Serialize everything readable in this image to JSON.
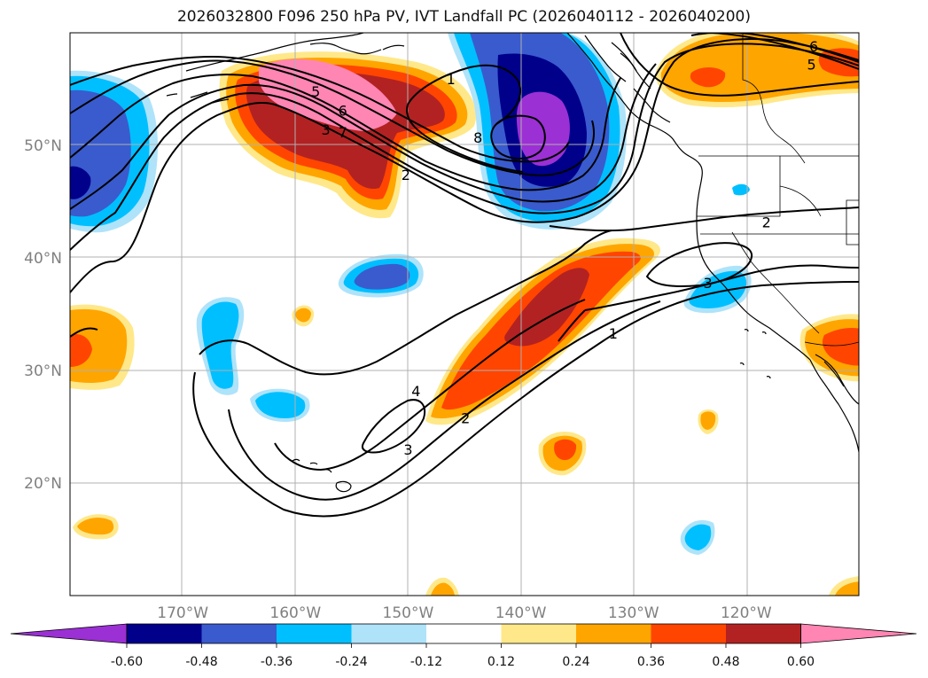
{
  "title": "2026032800 F096 250 hPa PV, IVT Landfall PC (2026040112 - 2026040200)",
  "map": {
    "lon_range": [
      -180,
      -110
    ],
    "lat_range": [
      10,
      60
    ],
    "lon_ticks": [
      {
        "value": -170,
        "label": "170°W"
      },
      {
        "value": -160,
        "label": "160°W"
      },
      {
        "value": -150,
        "label": "150°W"
      },
      {
        "value": -140,
        "label": "140°W"
      },
      {
        "value": -130,
        "label": "130°W"
      },
      {
        "value": -120,
        "label": "120°W"
      }
    ],
    "lat_ticks": [
      {
        "value": 50,
        "label": "50°N"
      },
      {
        "value": 40,
        "label": "40°N"
      },
      {
        "value": 30,
        "label": "30°N"
      },
      {
        "value": 20,
        "label": "20°N"
      }
    ],
    "grid": true,
    "tick_color": "#808080",
    "contour_labels": [
      {
        "text": "5",
        "lon": -158.2,
        "lat": 54.8
      },
      {
        "text": "6",
        "lon": -155.8,
        "lat": 53.1
      },
      {
        "text": "3",
        "lon": -157.3,
        "lat": 51.4
      },
      {
        "text": "7",
        "lon": -155.8,
        "lat": 51.2
      },
      {
        "text": "2",
        "lon": -150.2,
        "lat": 47.4
      },
      {
        "text": "1",
        "lon": -146.2,
        "lat": 55.9
      },
      {
        "text": "8",
        "lon": -143.8,
        "lat": 50.7
      },
      {
        "text": "6",
        "lon": -114.0,
        "lat": 58.8
      },
      {
        "text": "5",
        "lon": -114.2,
        "lat": 57.2
      },
      {
        "text": "2",
        "lon": -118.2,
        "lat": 43.2
      },
      {
        "text": "3",
        "lon": -123.4,
        "lat": 37.8
      },
      {
        "text": "1",
        "lon": -131.8,
        "lat": 33.3
      },
      {
        "text": "4",
        "lon": -149.3,
        "lat": 28.2
      },
      {
        "text": "2",
        "lon": -144.9,
        "lat": 25.8
      },
      {
        "text": "3",
        "lon": -150.0,
        "lat": 23.0
      }
    ]
  },
  "colorbar": {
    "levels": [
      "-0.60",
      "-0.48",
      "-0.36",
      "-0.24",
      "-0.12",
      "0.12",
      "0.24",
      "0.36",
      "0.48",
      "0.60"
    ],
    "colors": [
      "#9b30d4",
      "#00008b",
      "#3a5bcd",
      "#00bfff",
      "#aee3fa",
      "#ffffff",
      "#ffe88a",
      "#ffa500",
      "#ff4500",
      "#b22222",
      "#ff85b3"
    ]
  }
}
